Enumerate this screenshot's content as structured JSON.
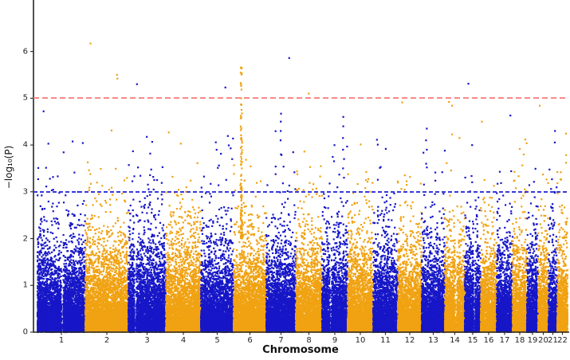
{
  "figure": {
    "xlabel": "Chromosome",
    "ylabel": "−log₁₀(P)"
  },
  "chart_data": {
    "type": "scatter",
    "subtype": "manhattan-plot",
    "title": "",
    "xlabel": "Chromosome",
    "ylabel": "-log10(P)",
    "ylabel_display": "−log₁₀(P)",
    "ylim": [
      0,
      7.1
    ],
    "y_ticks": [
      "0",
      "1",
      "2",
      "3",
      "4",
      "5",
      "6"
    ],
    "grid": false,
    "legend": null,
    "colors": {
      "odd_chromosome": "#1717c8",
      "even_chromosome": "#f0a212",
      "genome_wide_line": "#f98989",
      "suggestive_line": "#3939d9",
      "axis": "#262626",
      "text": "#111111"
    },
    "threshold_lines": [
      {
        "name": "genome-wide significance",
        "value": 5.0,
        "color": "#f98989",
        "style": "dashed",
        "dash": 7,
        "gap": 4,
        "thickness": 2
      },
      {
        "name": "suggestive significance",
        "value": 3.0,
        "color": "#3939d9",
        "style": "dashed",
        "dash": 5,
        "gap": 3,
        "thickness": 2
      }
    ],
    "chromosomes": [
      {
        "label": "1",
        "size": 60,
        "base_max": 4.3,
        "gap": 0.52,
        "peaks": [
          {
            "frac": 0.12,
            "values": [
              4.72
            ]
          }
        ]
      },
      {
        "label": "2",
        "size": 54,
        "base_max": 4.35,
        "peaks": [
          {
            "frac": 0.13,
            "values": [
              6.17
            ]
          },
          {
            "frac": 0.74,
            "values": [
              5.5,
              5.42
            ]
          }
        ]
      },
      {
        "label": "3",
        "size": 47,
        "base_max": 4.2,
        "gap": 0.19,
        "peaks": [
          {
            "frac": 0.23,
            "values": [
              5.3
            ]
          }
        ]
      },
      {
        "label": "4",
        "size": 44,
        "base_max": 4.55,
        "peaks": []
      },
      {
        "label": "5",
        "size": 41,
        "base_max": 4.3,
        "peaks": [
          {
            "frac": 0.75,
            "values": [
              5.23
            ]
          }
        ]
      },
      {
        "label": "6",
        "size": 41,
        "base_max": 4.5,
        "peaks": []
      },
      {
        "label": "7",
        "size": 37,
        "base_max": 4.3,
        "peaks": [
          {
            "frac": 0.78,
            "values": [
              5.86
            ]
          },
          {
            "frac": 0.49,
            "values": [
              4.67,
              4.5,
              4.3,
              4.1,
              3.8
            ]
          }
        ]
      },
      {
        "label": "8",
        "size": 33,
        "base_max": 4.3,
        "peaks": [
          {
            "frac": 0.48,
            "values": [
              5.1
            ]
          }
        ]
      },
      {
        "label": "9",
        "size": 32,
        "base_max": 4.2,
        "gap": 0.34,
        "peaks": [
          {
            "frac": 0.84,
            "values": [
              4.6,
              4.4,
              4.15,
              3.9,
              3.7,
              3.5,
              3.3
            ]
          }
        ]
      },
      {
        "label": "10",
        "size": 32,
        "base_max": 4.45,
        "peaks": []
      },
      {
        "label": "11",
        "size": 31,
        "base_max": 4.45,
        "peaks": []
      },
      {
        "label": "12",
        "size": 30,
        "base_max": 4.3,
        "peaks": [
          {
            "frac": 0.2,
            "values": [
              4.91
            ]
          }
        ]
      },
      {
        "label": "13",
        "size": 29,
        "base_max": 4.1,
        "peaks": [
          {
            "frac": 0.2,
            "values": [
              4.35,
              4.1,
              3.9,
              3.6
            ]
          }
        ]
      },
      {
        "label": "14",
        "size": 25,
        "base_max": 4.3,
        "gap": 0.56,
        "peaks": [
          {
            "frac": 0.2,
            "values": [
              4.92
            ]
          },
          {
            "frac": 0.36,
            "values": [
              4.84
            ]
          }
        ]
      },
      {
        "label": "15",
        "size": 20,
        "base_max": 4.2,
        "gap": 0.6,
        "peaks": [
          {
            "frac": 0.2,
            "values": [
              5.31
            ]
          }
        ]
      },
      {
        "label": "16",
        "size": 20,
        "base_max": 4.5,
        "peaks": [
          {
            "frac": 0.05,
            "values": [
              4.5
            ]
          }
        ]
      },
      {
        "label": "17",
        "size": 20,
        "base_max": 4.3,
        "peaks": [
          {
            "frac": 0.85,
            "values": [
              4.63
            ]
          }
        ]
      },
      {
        "label": "18",
        "size": 18,
        "base_max": 4.25,
        "peaks": []
      },
      {
        "label": "19",
        "size": 14,
        "base_max": 3.9,
        "peaks": []
      },
      {
        "label": "20",
        "size": 13,
        "base_max": 4.3,
        "peaks": [
          {
            "frac": 0.15,
            "values": [
              4.84
            ]
          }
        ]
      },
      {
        "label": "21",
        "size": 11,
        "base_max": 4.1,
        "peaks": [
          {
            "frac": 0.8,
            "values": [
              4.3
            ]
          }
        ]
      },
      {
        "label": "22",
        "size": 13,
        "base_max": 4.35,
        "peaks": []
      }
    ],
    "spike": {
      "chromosome": "6",
      "frac": 0.24,
      "count": 130,
      "min": 2.0,
      "max": 5.66
    },
    "render_params": {
      "points_per_size_unit": 80,
      "lambda": 1.25,
      "point_size": 2.2
    }
  }
}
